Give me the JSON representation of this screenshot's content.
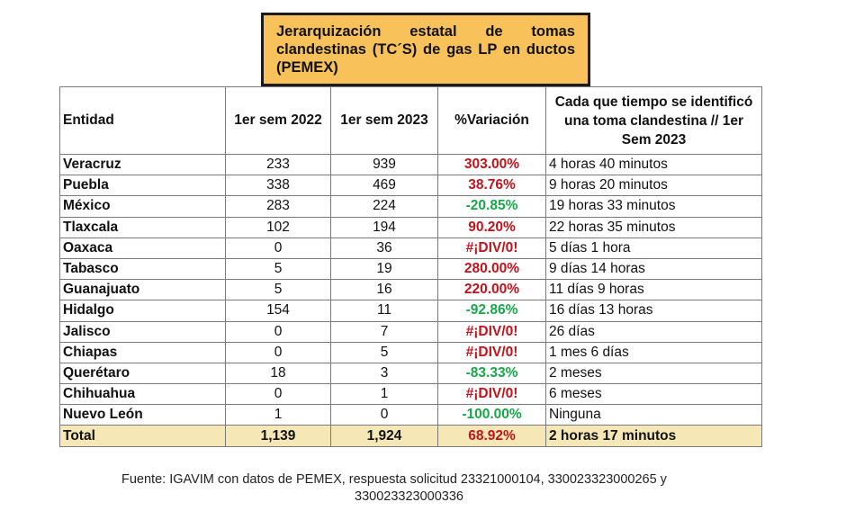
{
  "title": "Jerarquización estatal de tomas clandestinas (TC´S) de gas LP en ductos (PEMEX)",
  "table": {
    "headers": {
      "entidad": "Entidad",
      "sem2022": "1er sem 2022",
      "sem2023": "1er sem 2023",
      "variacion": "%Variación",
      "cada_tiempo": "Cada que tiempo se identificó una toma clandestina // 1er Sem 2023"
    },
    "rows": [
      {
        "entidad": "Veracruz",
        "sem2022": "233",
        "sem2023": "939",
        "variacion": "303.00%",
        "tipo": "pos",
        "cada_tiempo": "4 horas 40 minutos"
      },
      {
        "entidad": "Puebla",
        "sem2022": "338",
        "sem2023": "469",
        "variacion": "38.76%",
        "tipo": "pos",
        "cada_tiempo": "9 horas 20 minutos"
      },
      {
        "entidad": "México",
        "sem2022": "283",
        "sem2023": "224",
        "variacion": "-20.85%",
        "tipo": "neg",
        "cada_tiempo": "19 horas 33 minutos"
      },
      {
        "entidad": "Tlaxcala",
        "sem2022": "102",
        "sem2023": "194",
        "variacion": "90.20%",
        "tipo": "pos",
        "cada_tiempo": "22 horas 35 minutos"
      },
      {
        "entidad": "Oaxaca",
        "sem2022": "0",
        "sem2023": "36",
        "variacion": "#¡DIV/0!",
        "tipo": "div0",
        "cada_tiempo": "5 días 1 hora"
      },
      {
        "entidad": "Tabasco",
        "sem2022": "5",
        "sem2023": "19",
        "variacion": "280.00%",
        "tipo": "pos",
        "cada_tiempo": "9 días 14 horas"
      },
      {
        "entidad": "Guanajuato",
        "sem2022": "5",
        "sem2023": "16",
        "variacion": "220.00%",
        "tipo": "pos",
        "cada_tiempo": "11 días 9 horas"
      },
      {
        "entidad": "Hidalgo",
        "sem2022": "154",
        "sem2023": "11",
        "variacion": "-92.86%",
        "tipo": "neg",
        "cada_tiempo": "16 días 13 horas"
      },
      {
        "entidad": "Jalisco",
        "sem2022": "0",
        "sem2023": "7",
        "variacion": "#¡DIV/0!",
        "tipo": "div0",
        "cada_tiempo": "26 días"
      },
      {
        "entidad": "Chiapas",
        "sem2022": "0",
        "sem2023": "5",
        "variacion": "#¡DIV/0!",
        "tipo": "div0",
        "cada_tiempo": "1 mes 6 días"
      },
      {
        "entidad": "Querétaro",
        "sem2022": "18",
        "sem2023": "3",
        "variacion": "-83.33%",
        "tipo": "neg",
        "cada_tiempo": "2 meses"
      },
      {
        "entidad": "Chihuahua",
        "sem2022": "0",
        "sem2023": "1",
        "variacion": "#¡DIV/0!",
        "tipo": "div0",
        "cada_tiempo": "6 meses"
      },
      {
        "entidad": "Nuevo León",
        "sem2022": "1",
        "sem2023": "0",
        "variacion": "-100.00%",
        "tipo": "neg",
        "cada_tiempo": "Ninguna"
      }
    ],
    "total": {
      "entidad": "Total",
      "sem2022": "1,139",
      "sem2023": "1,924",
      "variacion": "68.92%",
      "cada_tiempo": "2 horas 17 minutos"
    }
  },
  "footer": {
    "line1": "Fuente: IGAVIM con datos de PEMEX, respuesta solicitud 23321000104, 330023323000265 y",
    "line2": "330023323000336"
  },
  "colors": {
    "title_bg": "#f8c15a",
    "positive": "#c0141c",
    "negative": "#1aa64a",
    "total_bg": "#f6e7b6"
  }
}
